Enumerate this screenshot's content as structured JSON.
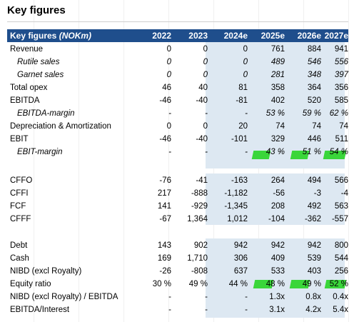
{
  "title": "Key figures",
  "header": {
    "label": "Key figures",
    "unit": "(NOKm)",
    "years": [
      "2022",
      "2023",
      "2024e",
      "2025e",
      "2026e",
      "2027e"
    ]
  },
  "rows": [
    {
      "label": "Revenue",
      "values": [
        "0",
        "0",
        "0",
        "761",
        "884",
        "941"
      ]
    },
    {
      "label": "Rutile sales",
      "values": [
        "0",
        "0",
        "0",
        "489",
        "546",
        "556"
      ]
    },
    {
      "label": "Garnet sales",
      "values": [
        "0",
        "0",
        "0",
        "281",
        "348",
        "397"
      ]
    },
    {
      "label": "Total opex",
      "values": [
        "46",
        "40",
        "81",
        "358",
        "364",
        "356"
      ]
    },
    {
      "label": "EBITDA",
      "values": [
        "-46",
        "-40",
        "-81",
        "402",
        "520",
        "585"
      ]
    },
    {
      "label": "EBITDA-margin",
      "values": [
        "-",
        "-",
        "-",
        "53 %",
        "59 %",
        "62 %"
      ]
    },
    {
      "label": "Depreciation & Amortization",
      "values": [
        "0",
        "0",
        "20",
        "74",
        "74",
        "74"
      ]
    },
    {
      "label": "EBIT",
      "values": [
        "-46",
        "-40",
        "-101",
        "329",
        "446",
        "511"
      ]
    },
    {
      "label": "EBIT-margin",
      "values": [
        "-",
        "-",
        "-",
        "43 %",
        "51 %",
        "54 %"
      ]
    },
    {
      "label": "CFFO",
      "values": [
        "-76",
        "-41",
        "-163",
        "264",
        "494",
        "566"
      ]
    },
    {
      "label": "CFFI",
      "values": [
        "217",
        "-888",
        "-1,182",
        "-56",
        "-3",
        "-4"
      ]
    },
    {
      "label": "FCF",
      "values": [
        "141",
        "-929",
        "-1,345",
        "208",
        "492",
        "563"
      ]
    },
    {
      "label": "CFFF",
      "values": [
        "-67",
        "1,364",
        "1,012",
        "-104",
        "-362",
        "-557"
      ]
    },
    {
      "label": "Debt",
      "values": [
        "143",
        "902",
        "942",
        "942",
        "942",
        "800"
      ]
    },
    {
      "label": "Cash",
      "values": [
        "169",
        "1,710",
        "306",
        "409",
        "539",
        "544"
      ]
    },
    {
      "label": "NIBD (excl Royalty)",
      "values": [
        "-26",
        "-808",
        "637",
        "533",
        "403",
        "256"
      ]
    },
    {
      "label": "Equity ratio",
      "values": [
        "30 %",
        "49 %",
        "44 %",
        "48 %",
        "49 %",
        "52 %"
      ]
    },
    {
      "label": "NIBD (excl Royalty) / EBITDA",
      "values": [
        "-",
        "-",
        "-",
        "1.3x",
        "0.8x",
        "0.4x"
      ]
    },
    {
      "label": "EBITDA/Interest",
      "values": [
        "-",
        "-",
        "-",
        "3.1x",
        "4.2x",
        "5.4x"
      ]
    }
  ]
}
